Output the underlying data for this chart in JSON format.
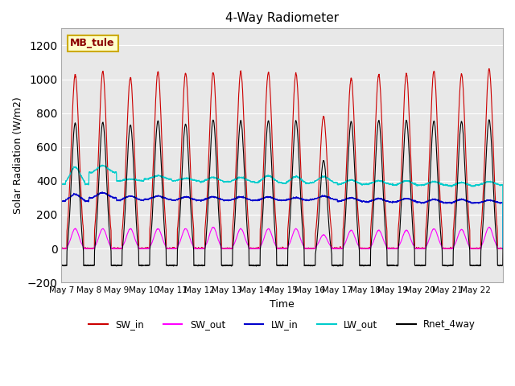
{
  "title": "4-Way Radiometer",
  "xlabel": "Time",
  "ylabel": "Solar Radiation (W/m2)",
  "ylim": [
    -200,
    1300
  ],
  "yticks": [
    -200,
    0,
    200,
    400,
    600,
    800,
    1000,
    1200
  ],
  "station_label": "MB_tule",
  "colors": {
    "SW_in": "#cc0000",
    "SW_out": "#ff00ff",
    "LW_in": "#0000cc",
    "LW_out": "#00cccc",
    "Rnet_4way": "#000000"
  },
  "days": 16,
  "start_day": 7,
  "xtick_labels": [
    "May 7",
    "May 8",
    "May 9",
    "May 10",
    "May 11",
    "May 12",
    "May 13",
    "May 14",
    "May 15",
    "May 16",
    "May 17",
    "May 18",
    "May 19",
    "May 20",
    "May 21",
    "May 22"
  ],
  "SW_in_peak": [
    1025,
    1045,
    1010,
    1045,
    1035,
    1040,
    1045,
    1040,
    1035,
    780,
    1005,
    1025,
    1030,
    1050,
    1030,
    1060
  ],
  "SW_out_peak": [
    130,
    130,
    130,
    130,
    130,
    140,
    130,
    130,
    130,
    90,
    120,
    120,
    120,
    130,
    125,
    140
  ],
  "LW_in_base": [
    280,
    300,
    285,
    290,
    285,
    285,
    285,
    285,
    285,
    290,
    280,
    275,
    275,
    270,
    270,
    270
  ],
  "LW_in_peak": [
    320,
    330,
    310,
    310,
    305,
    305,
    305,
    305,
    300,
    310,
    300,
    295,
    295,
    290,
    290,
    285
  ],
  "LW_out_base": [
    380,
    450,
    400,
    410,
    400,
    395,
    395,
    390,
    385,
    390,
    380,
    380,
    375,
    375,
    370,
    375
  ],
  "LW_out_peak": [
    480,
    490,
    410,
    430,
    415,
    420,
    420,
    430,
    425,
    425,
    405,
    400,
    400,
    395,
    390,
    395
  ],
  "Rnet_night": [
    -100,
    -100,
    -100,
    -100,
    -100,
    -100,
    -100,
    -100,
    -100,
    -100,
    -100,
    -100,
    -100,
    -100,
    -100,
    -100
  ],
  "Rnet_peak": [
    740,
    745,
    730,
    755,
    735,
    760,
    755,
    755,
    755,
    520,
    750,
    755,
    755,
    755,
    750,
    760
  ],
  "background_color": "#e8e8e8",
  "plot_bg_color": "#e8e8e8"
}
